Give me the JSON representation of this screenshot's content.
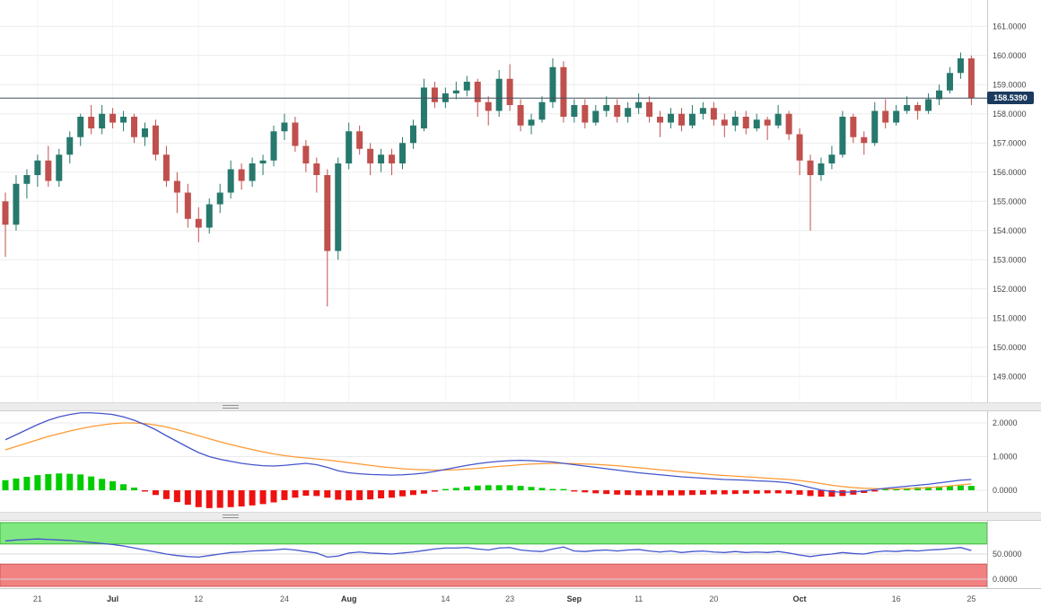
{
  "chart": {
    "current_price_label": "158.5390",
    "colors": {
      "bull": "#26796c",
      "bear": "#c0504d",
      "hist_pos": "#00cc00",
      "hist_neg": "#ee1111",
      "macd_line": "#4455cc",
      "signal_line": "#ff9933",
      "osc_line": "#4455cc",
      "overbought_fill": "#80e880",
      "overbought_border": "#3cb83c",
      "oversold_fill": "#f28282",
      "oversold_border": "#cc5555",
      "price_tag_bg": "#1b3a5e",
      "current_price_line": "#405060",
      "grid": "#ebebeb",
      "grid_vertical": "#f4f4f4",
      "axis_text": "#444444",
      "panel_border": "#c8c8c8"
    }
  },
  "chart_data": {
    "type": "candlestick",
    "title": "",
    "xlabel": "",
    "ylabel": "",
    "ylim": [
      148.1,
      161.9
    ],
    "grid": true,
    "legend_position": "none",
    "current_price": 158.539,
    "price_axis": {
      "ticks": [
        161,
        160,
        159,
        158,
        157,
        156,
        155,
        154,
        153,
        152,
        151,
        150,
        149
      ],
      "decimals": 4
    },
    "x_ticks": [
      {
        "index": 3,
        "label": "21",
        "bold": false
      },
      {
        "index": 10,
        "label": "Jul",
        "bold": true
      },
      {
        "index": 18,
        "label": "12",
        "bold": false
      },
      {
        "index": 26,
        "label": "24",
        "bold": false
      },
      {
        "index": 32,
        "label": "Aug",
        "bold": true
      },
      {
        "index": 41,
        "label": "14",
        "bold": false
      },
      {
        "index": 47,
        "label": "23",
        "bold": false
      },
      {
        "index": 53,
        "label": "Sep",
        "bold": true
      },
      {
        "index": 59,
        "label": "11",
        "bold": false
      },
      {
        "index": 66,
        "label": "20",
        "bold": false
      },
      {
        "index": 74,
        "label": "Oct",
        "bold": true
      },
      {
        "index": 83,
        "label": "16",
        "bold": false
      },
      {
        "index": 90,
        "label": "25",
        "bold": false
      }
    ],
    "candles": [
      [
        155.0,
        155.3,
        153.1,
        154.2
      ],
      [
        154.2,
        155.9,
        154.0,
        155.6
      ],
      [
        155.6,
        156.1,
        155.1,
        155.9
      ],
      [
        155.9,
        156.6,
        155.5,
        156.4
      ],
      [
        156.4,
        156.9,
        155.5,
        155.7
      ],
      [
        155.7,
        156.8,
        155.5,
        156.6
      ],
      [
        156.6,
        157.4,
        156.3,
        157.2
      ],
      [
        157.2,
        158.0,
        156.9,
        157.9
      ],
      [
        157.9,
        158.3,
        157.3,
        157.5
      ],
      [
        157.5,
        158.3,
        157.3,
        158.0
      ],
      [
        158.0,
        158.2,
        157.5,
        157.7
      ],
      [
        157.7,
        158.1,
        157.4,
        157.9
      ],
      [
        157.9,
        158.0,
        157.0,
        157.2
      ],
      [
        157.2,
        157.7,
        156.9,
        157.5
      ],
      [
        157.6,
        157.8,
        156.4,
        156.6
      ],
      [
        156.6,
        156.9,
        155.5,
        155.7
      ],
      [
        155.7,
        156.0,
        154.6,
        155.3
      ],
      [
        155.3,
        155.6,
        154.1,
        154.4
      ],
      [
        154.4,
        154.8,
        153.6,
        154.1
      ],
      [
        154.1,
        155.1,
        153.9,
        154.9
      ],
      [
        154.9,
        155.6,
        154.6,
        155.3
      ],
      [
        155.3,
        156.4,
        155.1,
        156.1
      ],
      [
        156.1,
        156.3,
        155.4,
        155.7
      ],
      [
        155.7,
        156.5,
        155.5,
        156.3
      ],
      [
        156.3,
        156.6,
        155.9,
        156.4
      ],
      [
        156.4,
        157.6,
        156.2,
        157.4
      ],
      [
        157.4,
        158.0,
        157.1,
        157.7
      ],
      [
        157.7,
        157.9,
        156.7,
        156.9
      ],
      [
        156.9,
        157.1,
        156.0,
        156.3
      ],
      [
        156.3,
        156.5,
        155.3,
        155.9
      ],
      [
        155.9,
        156.1,
        151.4,
        153.3
      ],
      [
        153.3,
        156.5,
        153.0,
        156.3
      ],
      [
        156.3,
        157.7,
        156.1,
        157.4
      ],
      [
        157.4,
        157.6,
        156.6,
        156.8
      ],
      [
        156.8,
        157.0,
        155.9,
        156.3
      ],
      [
        156.3,
        156.8,
        156.0,
        156.6
      ],
      [
        156.6,
        156.8,
        155.9,
        156.3
      ],
      [
        156.3,
        157.2,
        156.1,
        157.0
      ],
      [
        157.0,
        157.8,
        156.8,
        157.6
      ],
      [
        157.5,
        159.2,
        157.4,
        158.9
      ],
      [
        158.9,
        159.1,
        158.2,
        158.4
      ],
      [
        158.4,
        158.9,
        158.2,
        158.7
      ],
      [
        158.7,
        159.1,
        158.5,
        158.8
      ],
      [
        158.8,
        159.3,
        158.6,
        159.1
      ],
      [
        159.1,
        159.2,
        157.9,
        158.4
      ],
      [
        158.4,
        158.6,
        157.6,
        158.1
      ],
      [
        158.1,
        159.5,
        157.9,
        159.2
      ],
      [
        159.2,
        159.7,
        158.1,
        158.3
      ],
      [
        158.3,
        158.5,
        157.4,
        157.6
      ],
      [
        157.6,
        158.0,
        157.3,
        157.8
      ],
      [
        157.8,
        158.6,
        157.7,
        158.4
      ],
      [
        158.4,
        159.9,
        158.2,
        159.6
      ],
      [
        159.6,
        159.8,
        157.7,
        157.9
      ],
      [
        157.9,
        158.5,
        157.7,
        158.3
      ],
      [
        158.3,
        158.5,
        157.5,
        157.7
      ],
      [
        157.7,
        158.3,
        157.6,
        158.1
      ],
      [
        158.1,
        158.6,
        157.9,
        158.3
      ],
      [
        158.3,
        158.5,
        157.7,
        157.9
      ],
      [
        157.9,
        158.4,
        157.7,
        158.2
      ],
      [
        158.2,
        158.7,
        158.0,
        158.4
      ],
      [
        158.4,
        158.6,
        157.7,
        157.9
      ],
      [
        157.9,
        158.1,
        157.2,
        157.7
      ],
      [
        157.7,
        158.2,
        157.5,
        158.0
      ],
      [
        158.0,
        158.2,
        157.4,
        157.6
      ],
      [
        157.6,
        158.3,
        157.5,
        158.0
      ],
      [
        158.0,
        158.4,
        157.8,
        158.2
      ],
      [
        158.2,
        158.4,
        157.6,
        157.8
      ],
      [
        157.8,
        158.0,
        157.2,
        157.6
      ],
      [
        157.6,
        158.1,
        157.4,
        157.9
      ],
      [
        157.9,
        158.1,
        157.3,
        157.5
      ],
      [
        157.5,
        158.0,
        157.4,
        157.8
      ],
      [
        157.8,
        157.9,
        157.1,
        157.6
      ],
      [
        157.6,
        158.3,
        157.5,
        158.0
      ],
      [
        158.0,
        158.1,
        157.1,
        157.3
      ],
      [
        157.3,
        157.5,
        155.9,
        156.4
      ],
      [
        156.4,
        156.6,
        154.0,
        155.9
      ],
      [
        155.9,
        156.5,
        155.7,
        156.3
      ],
      [
        156.3,
        156.9,
        156.1,
        156.6
      ],
      [
        156.6,
        158.1,
        156.5,
        157.9
      ],
      [
        157.9,
        158.0,
        157.0,
        157.2
      ],
      [
        157.2,
        157.4,
        156.6,
        157.0
      ],
      [
        157.0,
        158.4,
        156.9,
        158.1
      ],
      [
        158.1,
        158.5,
        157.5,
        157.7
      ],
      [
        157.7,
        158.3,
        157.6,
        158.1
      ],
      [
        158.1,
        158.6,
        158.0,
        158.3
      ],
      [
        158.3,
        158.4,
        157.8,
        158.1
      ],
      [
        158.1,
        158.7,
        158.0,
        158.5
      ],
      [
        158.5,
        159.0,
        158.3,
        158.8
      ],
      [
        158.8,
        159.6,
        158.7,
        159.4
      ],
      [
        159.4,
        160.1,
        159.2,
        159.9
      ],
      [
        159.9,
        160.0,
        158.3,
        158.54
      ]
    ],
    "macd": {
      "axis_ticks": [
        2,
        1,
        0
      ],
      "macd": [
        1.5,
        1.65,
        1.8,
        1.95,
        2.08,
        2.18,
        2.25,
        2.3,
        2.3,
        2.28,
        2.25,
        2.18,
        2.08,
        1.95,
        1.8,
        1.62,
        1.45,
        1.28,
        1.12,
        1.0,
        0.92,
        0.86,
        0.8,
        0.76,
        0.73,
        0.72,
        0.74,
        0.77,
        0.8,
        0.76,
        0.68,
        0.58,
        0.52,
        0.49,
        0.47,
        0.46,
        0.45,
        0.46,
        0.48,
        0.51,
        0.56,
        0.62,
        0.68,
        0.74,
        0.79,
        0.83,
        0.86,
        0.88,
        0.89,
        0.88,
        0.86,
        0.84,
        0.8,
        0.76,
        0.72,
        0.68,
        0.64,
        0.6,
        0.56,
        0.52,
        0.49,
        0.46,
        0.43,
        0.4,
        0.38,
        0.36,
        0.34,
        0.32,
        0.31,
        0.3,
        0.28,
        0.27,
        0.25,
        0.22,
        0.16,
        0.08,
        0.01,
        -0.04,
        -0.06,
        -0.05,
        -0.02,
        0.02,
        0.06,
        0.09,
        0.12,
        0.15,
        0.18,
        0.22,
        0.26,
        0.3,
        0.32
      ],
      "signal": [
        1.2,
        1.3,
        1.4,
        1.5,
        1.6,
        1.68,
        1.76,
        1.83,
        1.89,
        1.94,
        1.98,
        2.0,
        2.0,
        1.98,
        1.94,
        1.88,
        1.8,
        1.71,
        1.62,
        1.53,
        1.44,
        1.36,
        1.28,
        1.21,
        1.14,
        1.08,
        1.03,
        0.99,
        0.96,
        0.93,
        0.9,
        0.86,
        0.82,
        0.78,
        0.74,
        0.7,
        0.67,
        0.64,
        0.62,
        0.61,
        0.6,
        0.6,
        0.61,
        0.63,
        0.65,
        0.68,
        0.71,
        0.73,
        0.76,
        0.78,
        0.79,
        0.8,
        0.8,
        0.79,
        0.78,
        0.77,
        0.75,
        0.73,
        0.7,
        0.67,
        0.64,
        0.61,
        0.58,
        0.55,
        0.52,
        0.49,
        0.46,
        0.44,
        0.42,
        0.4,
        0.38,
        0.36,
        0.34,
        0.32,
        0.29,
        0.25,
        0.2,
        0.15,
        0.11,
        0.08,
        0.06,
        0.05,
        0.04,
        0.04,
        0.05,
        0.06,
        0.08,
        0.1,
        0.13,
        0.16,
        0.19
      ]
    },
    "oscillator": {
      "axis_ticks": [
        50,
        0
      ],
      "range": [
        0,
        100
      ],
      "overbought": 70,
      "oversold": 30,
      "values": [
        76,
        78,
        79,
        80,
        79,
        78,
        77,
        75,
        73,
        71,
        69,
        66,
        62,
        58,
        54,
        50,
        47,
        45,
        44,
        47,
        50,
        53,
        54,
        56,
        57,
        58,
        60,
        58,
        55,
        52,
        44,
        46,
        52,
        54,
        52,
        51,
        50,
        52,
        54,
        57,
        60,
        62,
        62,
        63,
        60,
        58,
        62,
        63,
        58,
        56,
        55,
        60,
        64,
        56,
        55,
        57,
        58,
        56,
        58,
        59,
        56,
        54,
        56,
        53,
        55,
        56,
        54,
        53,
        55,
        53,
        54,
        53,
        55,
        52,
        48,
        45,
        48,
        50,
        53,
        51,
        50,
        54,
        56,
        55,
        57,
        56,
        58,
        59,
        61,
        63,
        57
      ]
    }
  }
}
